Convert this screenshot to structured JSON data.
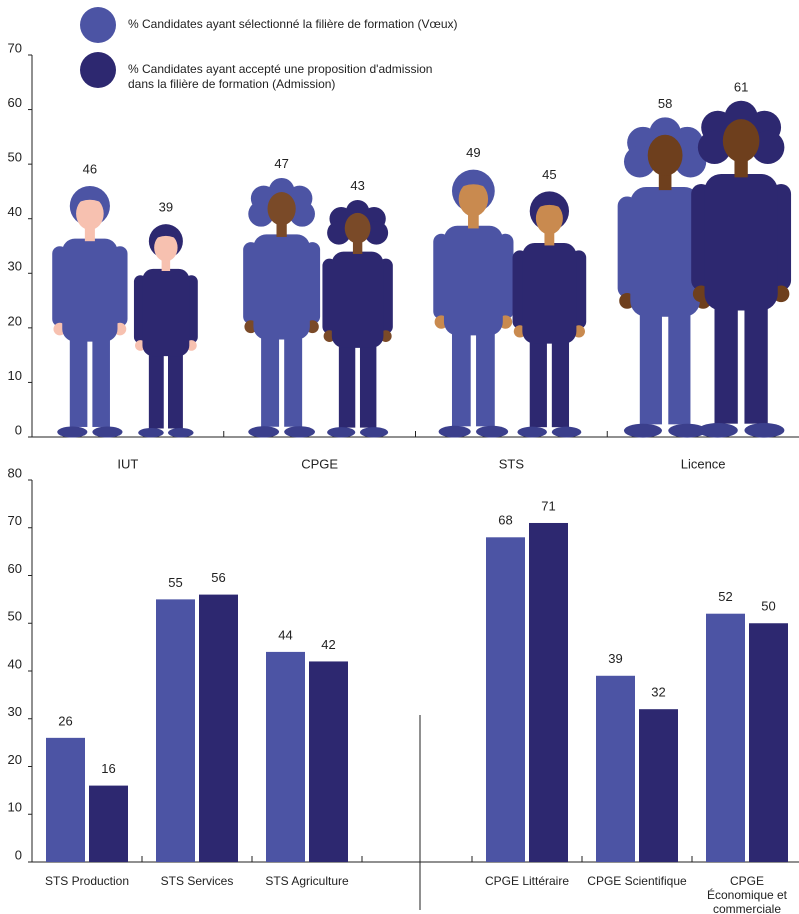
{
  "chart_data": [
    {
      "type": "pictograph",
      "categories": [
        "IUT",
        "CPGE",
        "STS",
        "Licence"
      ],
      "series": [
        {
          "name": "% Candidates ayant sélectionné la filière de formation (Vœux)",
          "color": "#4c54a4",
          "values": [
            46,
            47,
            49,
            58
          ]
        },
        {
          "name": "% Candidates ayant accepté une proposition d'admission dans la filière de formation (Admission)",
          "color": "#2d2870",
          "values": [
            39,
            43,
            45,
            61
          ]
        }
      ],
      "ylim": [
        0,
        70
      ],
      "yticks": [
        0,
        10,
        20,
        30,
        40,
        50,
        60,
        70
      ]
    },
    {
      "type": "bar",
      "categories": [
        "STS Production",
        "STS Services",
        "STS Agriculture",
        null,
        "CPGE Littéraire",
        "CPGE Scientifique",
        "CPGE Économique et commerciale"
      ],
      "series": [
        {
          "color": "#4c54a4",
          "values": [
            26,
            55,
            44,
            null,
            68,
            39,
            52
          ]
        },
        {
          "color": "#2d2870",
          "values": [
            16,
            56,
            42,
            null,
            71,
            32,
            50
          ]
        }
      ],
      "ylim": [
        0,
        80
      ],
      "yticks": [
        0,
        10,
        20,
        30,
        40,
        50,
        60,
        70,
        80
      ]
    }
  ]
}
